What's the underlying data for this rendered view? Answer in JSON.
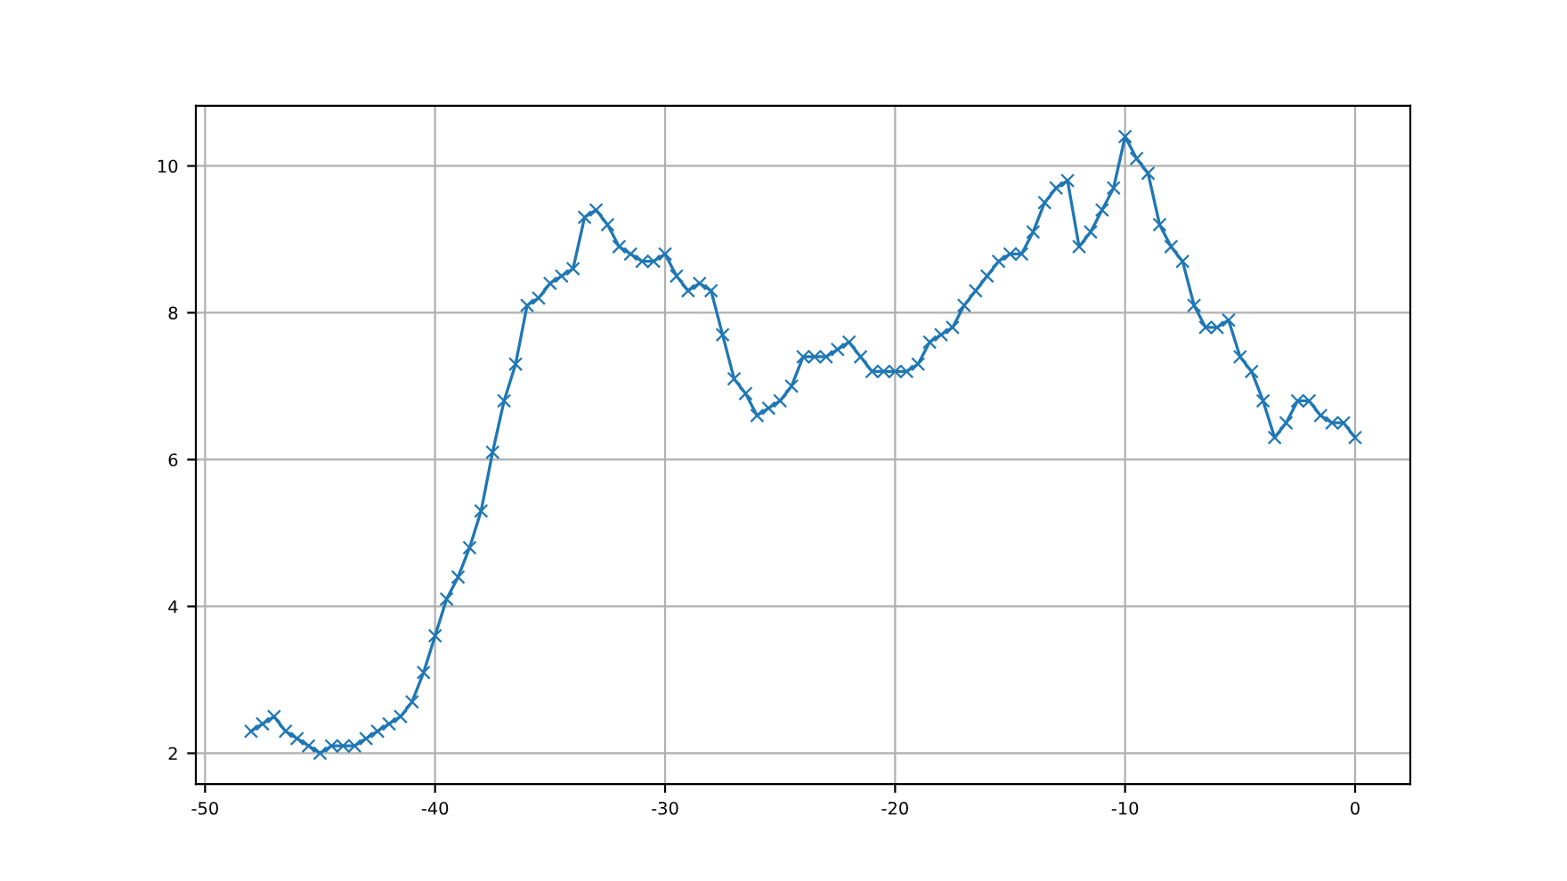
{
  "chart_data": {
    "type": "line",
    "x": [
      -48,
      -47.5,
      -47,
      -46.5,
      -46,
      -45.5,
      -45,
      -44.5,
      -44,
      -43.5,
      -43,
      -42.5,
      -42,
      -41.5,
      -41,
      -40.5,
      -40,
      -39.5,
      -39,
      -38.5,
      -38,
      -37.5,
      -37,
      -36.5,
      -36,
      -35.5,
      -35,
      -34.5,
      -34,
      -33.5,
      -33,
      -32.5,
      -32,
      -31.5,
      -31,
      -30.5,
      -30,
      -29.5,
      -29,
      -28.5,
      -28,
      -27.5,
      -27,
      -26.5,
      -26,
      -25.5,
      -25,
      -24.5,
      -24,
      -23.5,
      -23,
      -22.5,
      -22,
      -21.5,
      -21,
      -20.5,
      -20,
      -19.5,
      -19,
      -18.5,
      -18,
      -17.5,
      -17,
      -16.5,
      -16,
      -15.5,
      -15,
      -14.5,
      -14,
      -13.5,
      -13,
      -12.5,
      -12,
      -11.5,
      -11,
      -10.5,
      -10,
      -9.5,
      -9,
      -8.5,
      -8,
      -7.5,
      -7,
      -6.5,
      -6,
      -5.5,
      -5,
      -4.5,
      -4,
      -3.5,
      -3,
      -2.5,
      -2,
      -1.5,
      -1,
      -0.5,
      0
    ],
    "series": [
      {
        "color": "#1f77b4",
        "values": [
          2.3,
          2.4,
          2.5,
          2.3,
          2.2,
          2.1,
          2.0,
          2.1,
          2.1,
          2.1,
          2.2,
          2.3,
          2.4,
          2.5,
          2.7,
          3.1,
          3.6,
          4.1,
          4.4,
          4.8,
          5.3,
          6.1,
          6.8,
          7.3,
          8.1,
          8.2,
          8.4,
          8.5,
          8.6,
          9.3,
          9.4,
          9.2,
          8.9,
          8.8,
          8.7,
          8.7,
          8.8,
          8.5,
          8.3,
          8.4,
          8.3,
          7.7,
          7.1,
          6.9,
          6.6,
          6.7,
          6.8,
          7.0,
          7.4,
          7.4,
          7.4,
          7.5,
          7.6,
          7.4,
          7.2,
          7.2,
          7.2,
          7.2,
          7.3,
          7.6,
          7.7,
          7.8,
          8.1,
          8.3,
          8.5,
          8.7,
          8.8,
          8.8,
          9.1,
          9.5,
          9.7,
          9.8,
          8.9,
          9.1,
          9.4,
          9.7,
          10.4,
          10.1,
          9.9,
          9.2,
          8.9,
          8.7,
          8.1,
          7.8,
          7.8,
          7.9,
          7.4,
          7.2,
          6.8,
          6.3,
          6.5,
          6.8,
          6.8,
          6.6,
          6.5,
          6.5,
          6.3
        ]
      }
    ],
    "xlim": [
      -50.4,
      2.4
    ],
    "xticks": [
      -50,
      -40,
      -30,
      -20,
      -10,
      0
    ],
    "ylim": [
      1.58,
      10.82
    ],
    "yticks": [
      2,
      4,
      6,
      8,
      10
    ],
    "grid": true,
    "marker": "cross",
    "line_style": "solid"
  }
}
